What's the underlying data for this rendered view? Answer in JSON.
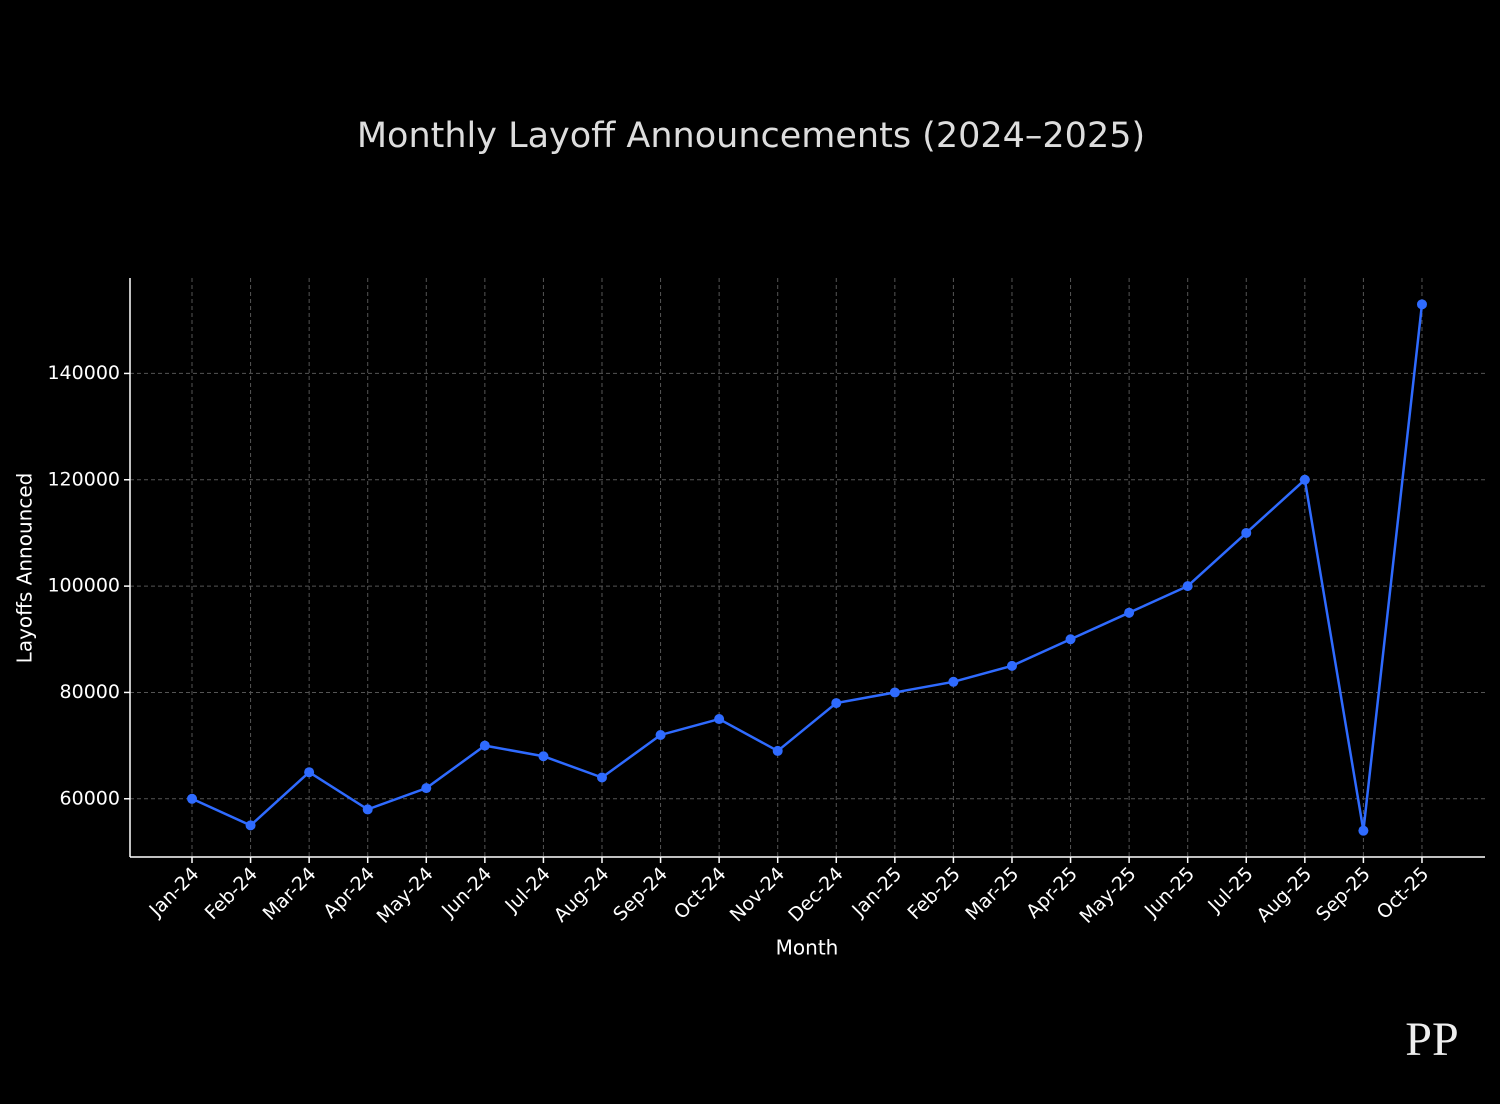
{
  "chart_data": {
    "type": "line",
    "title": "Monthly Layoff Announcements (2024–2025)",
    "x_label": "Month",
    "y_label": "Layoffs Announced",
    "categories": [
      "Jan-24",
      "Feb-24",
      "Mar-24",
      "Apr-24",
      "May-24",
      "Jun-24",
      "Jul-24",
      "Aug-24",
      "Sep-24",
      "Oct-24",
      "Nov-24",
      "Dec-24",
      "Jan-25",
      "Feb-25",
      "Mar-25",
      "Apr-25",
      "May-25",
      "Jun-25",
      "Jul-25",
      "Aug-25",
      "Sep-25",
      "Oct-25"
    ],
    "series": [
      {
        "name": "Layoffs Announced",
        "color": "#2f6bff",
        "values": [
          60000,
          55000,
          65000,
          58000,
          62000,
          70000,
          68000,
          64000,
          72000,
          75000,
          69000,
          78000,
          80000,
          82000,
          85000,
          90000,
          95000,
          100000,
          110000,
          120000,
          54000,
          153000
        ]
      }
    ],
    "ylim": [
      49050,
      157950
    ],
    "yticks": [
      60000,
      80000,
      100000,
      120000,
      140000
    ],
    "grid": true,
    "watermark": "PP"
  }
}
